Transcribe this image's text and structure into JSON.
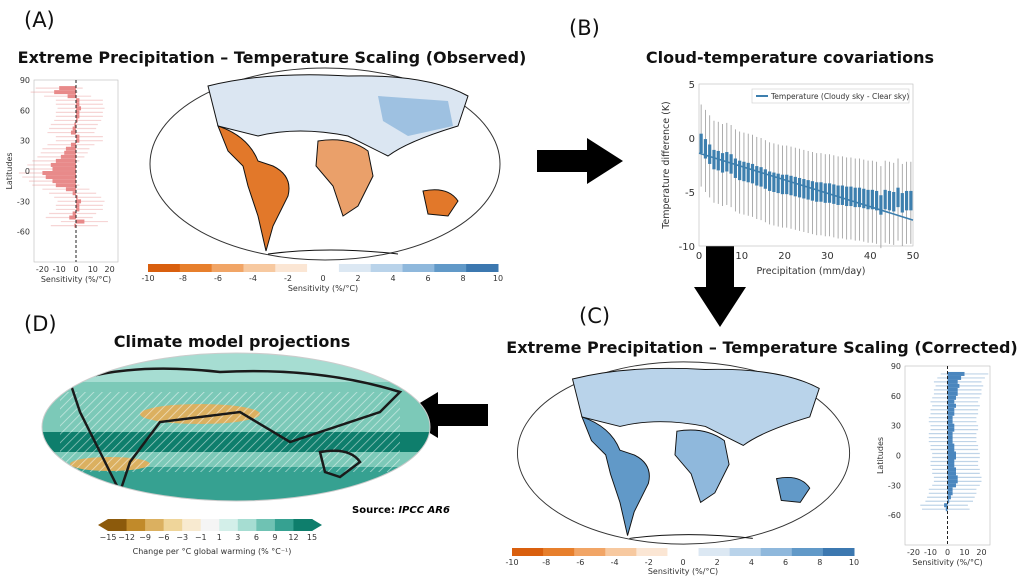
{
  "panels": {
    "a": {
      "label": "(A)",
      "title": "Extreme Precipitation – Temperature Scaling (Observed)",
      "hist": {
        "ylabel": "Latitudes",
        "xlabel": "Sensitivity (%/°C)",
        "yticks": [
          "90",
          "60",
          "30",
          "0",
          "-30",
          "-60"
        ],
        "xticks": [
          "-20",
          "-10",
          "0",
          "10",
          "20"
        ],
        "lat": [
          82,
          78,
          74,
          70,
          66,
          62,
          58,
          54,
          50,
          46,
          42,
          38,
          34,
          30,
          26,
          22,
          18,
          14,
          10,
          6,
          2,
          -2,
          -6,
          -10,
          -14,
          -18,
          -22,
          -26,
          -30,
          -34,
          -38,
          -42,
          -46,
          -50,
          -54
        ],
        "mean": [
          -10,
          -13,
          -5,
          2,
          2,
          3,
          2,
          2,
          1,
          -1,
          -2,
          -3,
          2,
          2,
          -3,
          -6,
          -7,
          -9,
          -12,
          -15,
          -14,
          -20,
          -18,
          -14,
          -12,
          -6,
          -2,
          1,
          3,
          2,
          2,
          -2,
          -4,
          5,
          -1
        ],
        "color": "#e88a8a"
      },
      "colorbar": {
        "label": "Sensitivity (%/°C)",
        "ticks": [
          "-10",
          "-8",
          "-6",
          "-4",
          "-2",
          "0",
          "2",
          "4",
          "6",
          "8",
          "10"
        ]
      }
    },
    "b": {
      "label": "(B)",
      "title": "Cloud-temperature covariations",
      "chart_data": {
        "type": "box",
        "title": "Cloud-temperature covariations",
        "xlabel": "Precipitation (mm/day)",
        "ylabel": "Temperature difference (K)",
        "xlim": [
          0,
          50
        ],
        "ylim": [
          -10,
          5
        ],
        "xticks": [
          "0",
          "10",
          "20",
          "30",
          "40",
          "50"
        ],
        "yticks": [
          "5",
          "0",
          "-5",
          "-10"
        ],
        "legend": "Temperature (Cloudy sky - Clear sky)",
        "legend_position": "top-right",
        "trend": {
          "x": [
            0,
            50
          ],
          "y": [
            -1.4,
            -7.6
          ]
        },
        "medians": [
          -0.5,
          -1,
          -1.5,
          -2,
          -2.1,
          -2.3,
          -2.2,
          -2.4,
          -2.8,
          -3,
          -3.1,
          -3.2,
          -3.3,
          -3.5,
          -3.6,
          -3.8,
          -4,
          -4.1,
          -4.2,
          -4.3,
          -4.3,
          -4.4,
          -4.5,
          -4.6,
          -4.7,
          -4.8,
          -4.9,
          -5,
          -5,
          -5.1,
          -5.1,
          -5.2,
          -5.3,
          -5.3,
          -5.4,
          -5.4,
          -5.5,
          -5.5,
          -5.6,
          -5.7,
          -5.7,
          -5.8,
          -6.2,
          -5.7,
          -5.8,
          -5.9,
          -5.5,
          -6,
          -5.8,
          -5.8
        ],
        "color": "#3d7fae"
      }
    },
    "c": {
      "label": "(C)",
      "title": "Extreme Precipitation – Temperature Scaling (Corrected)",
      "hist": {
        "ylabel": "Latitudes",
        "xlabel": "Sensitivity (%/°C)",
        "yticks": [
          "90",
          "60",
          "30",
          "0",
          "-30",
          "-60"
        ],
        "xticks": [
          "-20",
          "-10",
          "0",
          "10",
          "20"
        ],
        "lat": [
          82,
          78,
          74,
          70,
          66,
          62,
          58,
          54,
          50,
          46,
          42,
          38,
          34,
          30,
          26,
          22,
          18,
          14,
          10,
          6,
          2,
          -2,
          -6,
          -10,
          -14,
          -18,
          -22,
          -26,
          -30,
          -34,
          -38,
          -42,
          -46,
          -50,
          -54
        ],
        "mean": [
          10,
          8,
          6,
          7,
          6,
          6,
          5,
          4,
          5,
          4,
          4,
          3,
          3,
          4,
          4,
          3,
          3,
          3,
          4,
          4,
          5,
          5,
          4,
          4,
          5,
          5,
          6,
          6,
          5,
          3,
          3,
          2,
          1,
          -2,
          -1
        ],
        "color": "#4a86be"
      },
      "colorbar": {
        "label": "Sensitivity (%/°C)",
        "ticks": [
          "-10",
          "-8",
          "-6",
          "-4",
          "-2",
          "0",
          "2",
          "4",
          "6",
          "8",
          "10"
        ]
      }
    },
    "d": {
      "label": "(D)",
      "title": "Climate model projections",
      "source_prefix": "Source: ",
      "source": "IPCC AR6",
      "colorbar": {
        "label": "Change per °C global warming (% °C⁻¹)",
        "ticks": [
          "−15",
          "−12",
          "−9",
          "−6",
          "−3",
          "−1",
          "1",
          "3",
          "6",
          "9",
          "12",
          "15"
        ],
        "colors": [
          "#8c5a0c",
          "#c18a2a",
          "#dbb060",
          "#efd59a",
          "#f8ead0",
          "#f5f5f5",
          "#d3efe9",
          "#a6ddd2",
          "#6fc2b3",
          "#36a191",
          "#0e7e6c"
        ]
      }
    }
  },
  "colors": {
    "div": [
      "#d95f0e",
      "#e77f2c",
      "#f1a566",
      "#f7c9a0",
      "#fbe6d4",
      "#ffffff",
      "#dce8f3",
      "#b9d3ea",
      "#8fb8dc",
      "#6199c8",
      "#3c78b0"
    ]
  }
}
